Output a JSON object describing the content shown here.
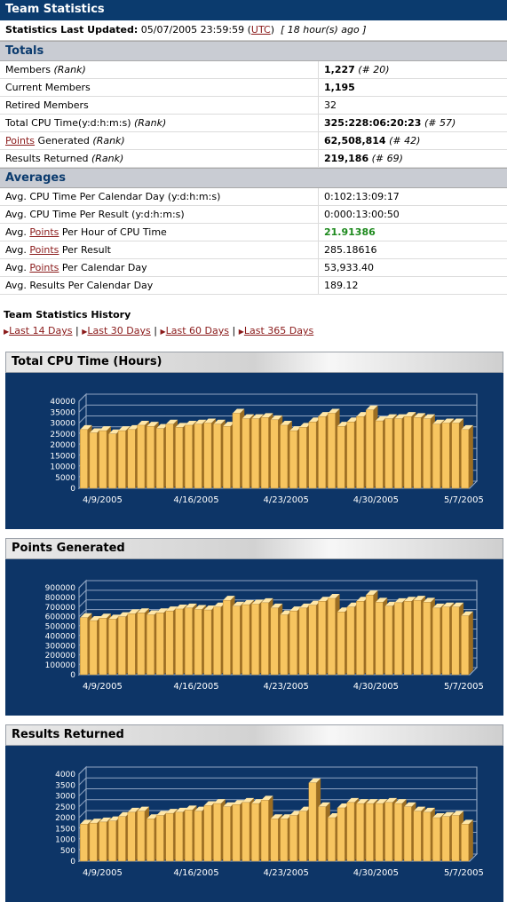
{
  "header": {
    "title": "Team Statistics"
  },
  "updated": {
    "label": "Statistics Last Updated:",
    "date": "05/07/2005 23:59:59",
    "tz_open": "(",
    "tz": "UTC",
    "tz_close": ")",
    "ago": "[ 18 hour(s) ago ]"
  },
  "totals": {
    "title": "Totals",
    "rows": [
      {
        "label": "Members",
        "rank_label": "(Rank)",
        "value": "1,227",
        "rank": "(# 20)"
      },
      {
        "label": "Current Members",
        "value": "1,195"
      },
      {
        "label": "Retired Members",
        "value": "32"
      },
      {
        "label": "Total CPU Time(y:d:h:m:s)",
        "rank_label": "(Rank)",
        "value": "325:228:06:20:23",
        "rank": "(# 57)"
      },
      {
        "link": "Points",
        "label": " Generated",
        "rank_label": "(Rank)",
        "value": "62,508,814",
        "rank": "(# 42)"
      },
      {
        "label": "Results Returned",
        "rank_label": "(Rank)",
        "value": "219,186",
        "rank": "(# 69)"
      }
    ]
  },
  "averages": {
    "title": "Averages",
    "rows": [
      {
        "pre": "Avg. CPU Time Per Calendar Day (y:d:h:m:s)",
        "value": "0:102:13:09:17"
      },
      {
        "pre": "Avg. CPU Time Per Result (y:d:h:m:s)",
        "value": "0:000:13:00:50"
      },
      {
        "pre": "Avg. ",
        "link": "Points",
        "post": " Per Hour of CPU Time",
        "value": "21.91386"
      },
      {
        "pre": "Avg. ",
        "link": "Points",
        "post": " Per Result",
        "value": "285.18616"
      },
      {
        "pre": "Avg. ",
        "link": "Points",
        "post": " Per Calendar Day",
        "value": "53,933.40"
      },
      {
        "pre": "Avg. Results Per Calendar Day",
        "value": "189.12"
      }
    ]
  },
  "history": {
    "title": "Team Statistics History",
    "links": [
      "Last 14 Days",
      "Last 30 Days",
      "Last 60 Days",
      "Last 365 Days"
    ],
    "separator": "|"
  },
  "colors": {
    "header_bg": "#0b3b6e",
    "chart_bg": "#0d3567",
    "bar_face": "#f7c560",
    "link": "#8a1a1a",
    "good": "#1e8a1e"
  },
  "chart_data": [
    {
      "type": "bar",
      "title": "Total CPU Time (Hours)",
      "x_tick_labels": [
        "4/9/2005",
        "4/16/2005",
        "4/23/2005",
        "4/30/2005",
        "5/7/2005"
      ],
      "ylim": [
        0,
        40000
      ],
      "y_ticks": [
        0,
        5000,
        10000,
        15000,
        20000,
        25000,
        30000,
        35000,
        40000
      ],
      "values": [
        27000,
        25500,
        26500,
        25000,
        26500,
        27000,
        29000,
        28500,
        27500,
        29500,
        28000,
        29000,
        29500,
        30000,
        29500,
        28500,
        34500,
        32000,
        32000,
        32500,
        31500,
        29000,
        26500,
        28000,
        30500,
        33000,
        34500,
        28500,
        30500,
        33000,
        36000,
        31000,
        32000,
        32000,
        33000,
        32500,
        32000,
        29500,
        30000,
        30000,
        27000
      ],
      "grid": true
    },
    {
      "type": "bar",
      "title": "Points Generated",
      "x_tick_labels": [
        "4/9/2005",
        "4/16/2005",
        "4/23/2005",
        "4/30/2005",
        "5/7/2005"
      ],
      "ylim": [
        0,
        900000
      ],
      "y_ticks": [
        0,
        100000,
        200000,
        300000,
        400000,
        500000,
        600000,
        700000,
        800000,
        900000
      ],
      "values": [
        590000,
        560000,
        585000,
        575000,
        600000,
        630000,
        640000,
        620000,
        640000,
        660000,
        680000,
        690000,
        675000,
        670000,
        700000,
        770000,
        710000,
        725000,
        730000,
        745000,
        690000,
        620000,
        660000,
        690000,
        720000,
        760000,
        790000,
        650000,
        700000,
        760000,
        825000,
        750000,
        710000,
        745000,
        760000,
        770000,
        750000,
        690000,
        700000,
        700000,
        610000
      ],
      "grid": true
    },
    {
      "type": "bar",
      "title": "Results Returned",
      "x_tick_labels": [
        "4/9/2005",
        "4/16/2005",
        "4/23/2005",
        "4/30/2005",
        "5/7/2005"
      ],
      "ylim": [
        0,
        4000
      ],
      "y_ticks": [
        0,
        500,
        1000,
        1500,
        2000,
        2500,
        3000,
        3500,
        4000
      ],
      "values": [
        1700,
        1750,
        1800,
        1850,
        2050,
        2250,
        2300,
        1950,
        2100,
        2200,
        2250,
        2350,
        2300,
        2550,
        2650,
        2500,
        2600,
        2700,
        2650,
        2800,
        1950,
        1950,
        2100,
        2300,
        3600,
        2500,
        2000,
        2450,
        2700,
        2650,
        2650,
        2650,
        2700,
        2650,
        2500,
        2300,
        2250,
        2000,
        2050,
        2100,
        1700
      ],
      "grid": true
    }
  ]
}
